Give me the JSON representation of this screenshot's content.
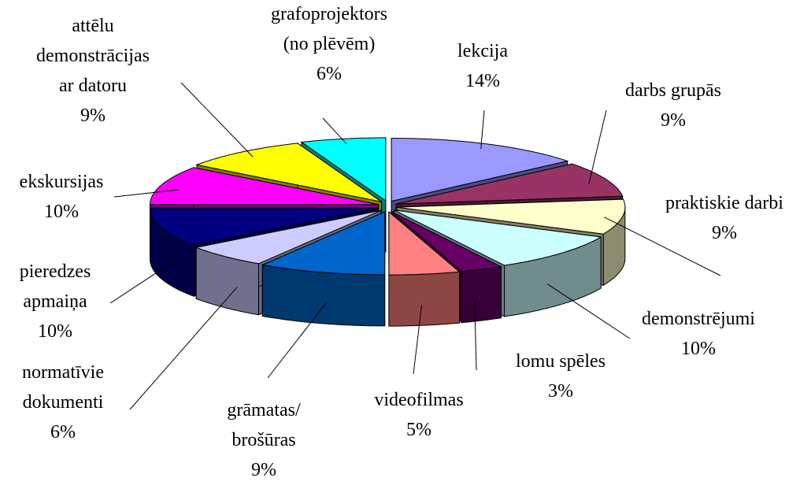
{
  "chart_data": {
    "type": "pie3d",
    "categories": [
      "lekcija",
      "darbs grupās",
      "praktiskie darbi",
      "demonstrējumi",
      "lomu spēles",
      "videofilmas",
      "grāmatas/\nbrošūras",
      "normatīvie\ndokumenti",
      "pieredzes\napmaiņa",
      "ekskursijas",
      "attēlu\ndemonstrācijas\nar datoru",
      "grafoprojektors\n(no plēvēm)"
    ],
    "values": [
      14,
      9,
      9,
      10,
      3,
      5,
      9,
      6,
      10,
      10,
      9,
      6
    ],
    "value_labels": [
      "14%",
      "9%",
      "9%",
      "10%",
      "3%",
      "5%",
      "9%",
      "6%",
      "10%",
      "10%",
      "9%",
      "6%"
    ],
    "colors": [
      "#9999ff",
      "#993366",
      "#ffffcc",
      "#ccffff",
      "#660066",
      "#ff8080",
      "#0066cc",
      "#ccccff",
      "#000080",
      "#ff00ff",
      "#ffff00",
      "#00ffff"
    ]
  }
}
